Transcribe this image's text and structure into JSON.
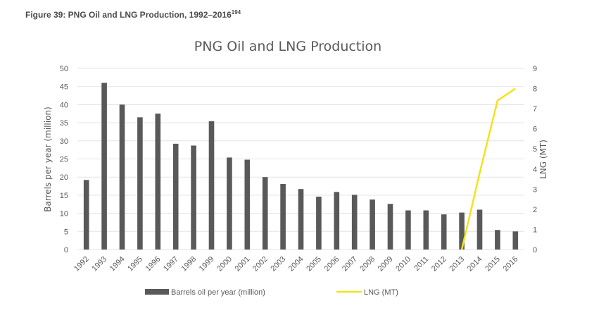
{
  "figure_caption": {
    "text": "Figure 39: PNG Oil and LNG Production, 1992–2016",
    "footnote": "194"
  },
  "chart_data": {
    "type": "bar+line",
    "title": "PNG Oil and LNG Production",
    "ylabel": "Barrels per year (million)",
    "y2label": "LNG (MT)",
    "ylim": [
      0,
      50
    ],
    "y2lim": [
      0,
      9
    ],
    "yticks": [
      0,
      5,
      10,
      15,
      20,
      25,
      30,
      35,
      40,
      45,
      50
    ],
    "y2ticks": [
      0,
      1,
      2,
      3,
      4,
      5,
      6,
      7,
      8,
      9
    ],
    "categories": [
      "1992",
      "1993",
      "1994",
      "1995",
      "1996",
      "1997",
      "1998",
      "1999",
      "2000",
      "2001",
      "2002",
      "2003",
      "2004",
      "2005",
      "2006",
      "2007",
      "2008",
      "2009",
      "2010",
      "2011",
      "2012",
      "2013",
      "2014",
      "2015",
      "2016"
    ],
    "grid": true,
    "legend_position": "bottom",
    "series": [
      {
        "name": "Barrels oil per year (million)",
        "type": "bar",
        "axis": "left",
        "color": "#595959",
        "values": [
          19.2,
          46,
          40,
          36.5,
          37.5,
          29.2,
          28.7,
          35.4,
          25.4,
          24.8,
          20,
          18.1,
          16.7,
          14.6,
          15.9,
          15.1,
          13.8,
          12.6,
          10.8,
          10.8,
          9.7,
          10.2,
          11,
          5.4,
          5
        ]
      },
      {
        "name": "LNG (MT)",
        "type": "line",
        "axis": "right",
        "color": "#f2e31c",
        "points": [
          [
            "2013",
            0
          ],
          [
            "2014",
            3.8
          ],
          [
            "2015",
            7.4
          ],
          [
            "2016",
            8
          ]
        ]
      }
    ]
  }
}
